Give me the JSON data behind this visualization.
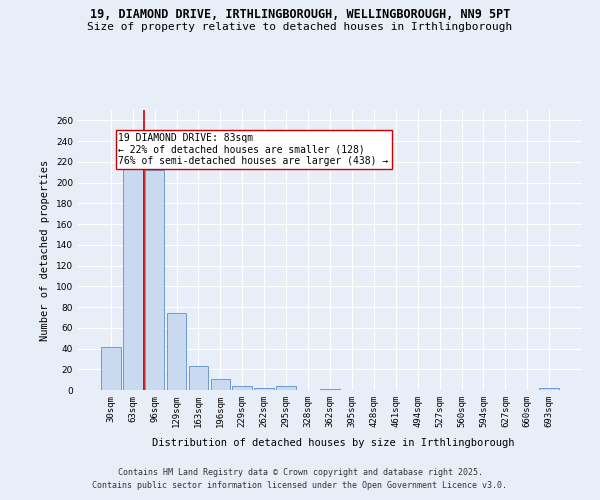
{
  "title_line1": "19, DIAMOND DRIVE, IRTHLINGBOROUGH, WELLINGBOROUGH, NN9 5PT",
  "title_line2": "Size of property relative to detached houses in Irthlingborough",
  "xlabel": "Distribution of detached houses by size in Irthlingborough",
  "ylabel": "Number of detached properties",
  "categories": [
    "30sqm",
    "63sqm",
    "96sqm",
    "129sqm",
    "163sqm",
    "196sqm",
    "229sqm",
    "262sqm",
    "295sqm",
    "328sqm",
    "362sqm",
    "395sqm",
    "428sqm",
    "461sqm",
    "494sqm",
    "527sqm",
    "560sqm",
    "594sqm",
    "627sqm",
    "660sqm",
    "693sqm"
  ],
  "values": [
    41,
    216,
    212,
    74,
    23,
    11,
    4,
    2,
    4,
    0,
    1,
    0,
    0,
    0,
    0,
    0,
    0,
    0,
    0,
    0,
    2
  ],
  "bar_color": "#c9d9f0",
  "bar_edge_color": "#5b8fcc",
  "vline_x": 1.5,
  "vline_color": "#cc0000",
  "annotation_text": "19 DIAMOND DRIVE: 83sqm\n← 22% of detached houses are smaller (128)\n76% of semi-detached houses are larger (438) →",
  "annotation_box_color": "#ffffff",
  "annotation_box_edge_color": "#cc0000",
  "ylim": [
    0,
    270
  ],
  "yticks": [
    0,
    20,
    40,
    60,
    80,
    100,
    120,
    140,
    160,
    180,
    200,
    220,
    240,
    260
  ],
  "background_color": "#e8eef8",
  "plot_bg_color": "#e8eef8",
  "grid_color": "#ffffff",
  "footer_line1": "Contains HM Land Registry data © Crown copyright and database right 2025.",
  "footer_line2": "Contains public sector information licensed under the Open Government Licence v3.0.",
  "title_fontsize": 8.5,
  "subtitle_fontsize": 8,
  "axis_label_fontsize": 7.5,
  "tick_fontsize": 6.5,
  "annotation_fontsize": 7,
  "footer_fontsize": 6
}
